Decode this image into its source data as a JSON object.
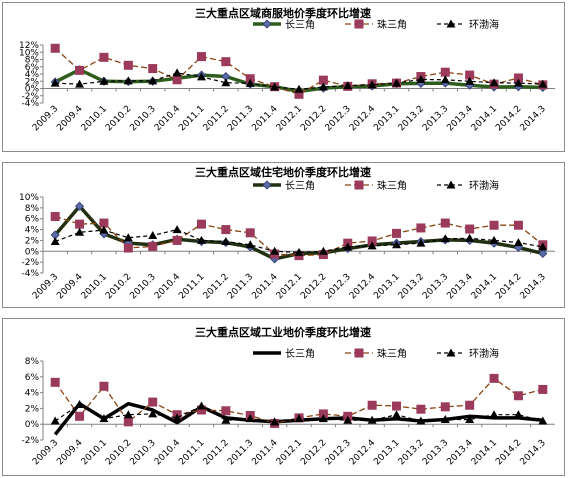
{
  "chart_data": [
    {
      "type": "line",
      "title": "三大重点区域商服地价季度环比增速",
      "categories": [
        "2009.3",
        "2009.4",
        "2010.1",
        "2010.2",
        "2010.3",
        "2010.4",
        "2011.1",
        "2011.2",
        "2011.3",
        "2011.4",
        "2012.1",
        "2012.2",
        "2012.3",
        "2012.4",
        "2013.1",
        "2013.2",
        "2013.3",
        "2013.4",
        "2014.1",
        "2014.2",
        "2014.3"
      ],
      "ylim": [
        -4,
        12
      ],
      "yticks": [
        -4,
        -2,
        0,
        2,
        4,
        6,
        8,
        10,
        12
      ],
      "ytick_labels": [
        "-4%",
        "-2%",
        "0%",
        "2%",
        "4%",
        "6%",
        "8%",
        "10%",
        "12%"
      ],
      "legend_position": "top-right",
      "series": [
        {
          "name": "长三角",
          "color": "#2e3a6e",
          "values": [
            1.8,
            5.2,
            2.0,
            1.9,
            2.0,
            2.8,
            3.7,
            3.3,
            1.2,
            0.5,
            -0.8,
            0.1,
            0.5,
            0.7,
            1.3,
            1.4,
            1.5,
            0.9,
            0.4,
            0.5,
            0.3
          ]
        },
        {
          "name": "珠三角",
          "color": "#9b3a5a",
          "values": [
            11.1,
            5.0,
            8.6,
            6.4,
            5.5,
            2.4,
            8.8,
            7.4,
            2.7,
            0.5,
            -1.6,
            2.3,
            0.6,
            1.3,
            1.5,
            3.3,
            4.5,
            3.7,
            1.2,
            2.9,
            1.0
          ]
        },
        {
          "name": "环渤海",
          "color": "#000000",
          "values": [
            1.5,
            1.2,
            2.0,
            2.1,
            2.1,
            4.3,
            3.2,
            1.6,
            1.4,
            0.4,
            -0.2,
            0.4,
            0.8,
            1.0,
            1.5,
            2.5,
            2.4,
            2.0,
            1.6,
            1.5,
            1.2
          ]
        }
      ]
    },
    {
      "type": "line",
      "title": "三大重点区域住宅地价季度环比增速",
      "categories": [
        "2009.3",
        "2009.4",
        "2010.1",
        "2010.2",
        "2010.3",
        "2010.4",
        "2011.1",
        "2011.2",
        "2011.3",
        "2011.4",
        "2012.1",
        "2012.2",
        "2012.3",
        "2012.4",
        "2013.1",
        "2013.2",
        "2013.3",
        "2013.4",
        "2014.1",
        "2014.2",
        "2014.3"
      ],
      "ylim": [
        -4,
        10
      ],
      "yticks": [
        -4,
        -2,
        0,
        2,
        4,
        6,
        8,
        10
      ],
      "ytick_labels": [
        "-4%",
        "-2%",
        "0%",
        "2%",
        "4%",
        "6%",
        "8%",
        "10%"
      ],
      "legend_position": "top-right",
      "series": [
        {
          "name": "长三角",
          "color": "#2e3a6e",
          "values": [
            3.0,
            8.3,
            3.2,
            1.5,
            1.2,
            2.2,
            1.8,
            1.6,
            0.8,
            -1.4,
            -0.4,
            -0.3,
            0.5,
            1.2,
            1.5,
            1.8,
            2.1,
            2.0,
            1.5,
            0.7,
            -0.4
          ]
        },
        {
          "name": "珠三角",
          "color": "#9b3a5a",
          "values": [
            6.4,
            5.0,
            5.2,
            0.6,
            0.9,
            2.0,
            5.0,
            4.0,
            3.4,
            -0.5,
            -0.8,
            -0.6,
            1.5,
            1.9,
            3.3,
            4.3,
            5.2,
            4.1,
            4.8,
            4.8,
            1.2
          ]
        },
        {
          "name": "环渤海",
          "color": "#000000",
          "values": [
            1.8,
            3.5,
            3.9,
            2.5,
            2.9,
            4.0,
            2.0,
            1.8,
            1.2,
            0.0,
            -0.2,
            0.0,
            0.8,
            1.0,
            1.2,
            1.5,
            2.3,
            2.4,
            2.0,
            1.6,
            0.8
          ]
        }
      ]
    },
    {
      "type": "line",
      "title": "三大重点区域工业地价季度环比增速",
      "categories": [
        "2009.3",
        "2009.4",
        "2010.1",
        "2010.2",
        "2010.3",
        "2010.4",
        "2011.1",
        "2011.2",
        "2011.3",
        "2011.4",
        "2012.1",
        "2012.2",
        "2012.3",
        "2012.4",
        "2013.1",
        "2013.2",
        "2013.3",
        "2013.4",
        "2014.1",
        "2014.2",
        "2014.3"
      ],
      "ylim": [
        -2,
        8
      ],
      "yticks": [
        -2,
        0,
        2,
        4,
        6,
        8
      ],
      "ytick_labels": [
        "-2%",
        "0%",
        "2%",
        "4%",
        "6%",
        "8%"
      ],
      "legend_position": "top-right",
      "series": [
        {
          "name": "长三角",
          "color": "#000000",
          "values": [
            -1.3,
            2.6,
            0.7,
            2.6,
            1.8,
            0.2,
            2.2,
            0.8,
            0.5,
            0.3,
            0.5,
            0.7,
            0.8,
            0.5,
            0.7,
            0.4,
            0.6,
            1.0,
            0.8,
            0.8,
            0.5
          ]
        },
        {
          "name": "珠三角",
          "color": "#9b3a5a",
          "values": [
            5.3,
            1.0,
            4.8,
            0.3,
            2.8,
            1.2,
            1.8,
            1.7,
            1.1,
            0.1,
            0.8,
            1.3,
            1.0,
            2.4,
            2.3,
            1.9,
            2.2,
            2.4,
            5.8,
            3.6,
            4.4
          ]
        },
        {
          "name": "环渤海",
          "color": "#000000",
          "values": [
            0.4,
            2.5,
            0.7,
            1.2,
            1.3,
            0.8,
            2.3,
            0.5,
            0.7,
            0.3,
            0.7,
            0.7,
            0.5,
            0.5,
            1.2,
            0.4,
            0.6,
            0.6,
            1.2,
            1.2,
            0.4
          ]
        }
      ]
    }
  ]
}
